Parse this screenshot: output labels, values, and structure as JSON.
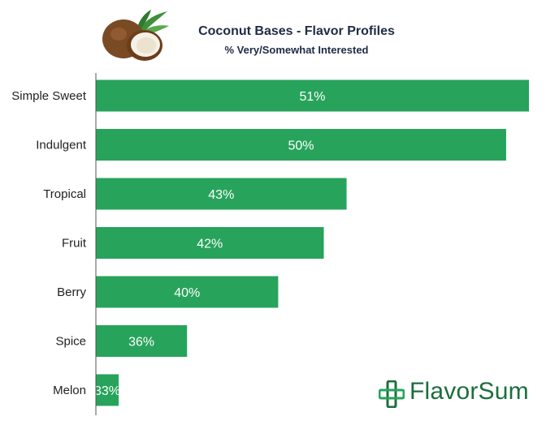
{
  "header": {
    "title": "Coconut Bases - Flavor Profiles",
    "subtitle": "% Very/Somewhat Interested"
  },
  "logo": {
    "text": "FlavorSum",
    "icon": "plus-cross-icon"
  },
  "colors": {
    "bar": "#27a35b",
    "bar_label": "#ffffff",
    "axis": "#555555",
    "text": "#222222",
    "title": "#1f2a44",
    "brand": "#1c6e3b"
  },
  "chart_data": {
    "type": "bar",
    "orientation": "horizontal",
    "title": "Coconut Bases - Flavor Profiles",
    "subtitle": "% Very/Somewhat Interested",
    "categories": [
      "Simple Sweet",
      "Indulgent",
      "Tropical",
      "Fruit",
      "Berry",
      "Spice",
      "Melon"
    ],
    "values": [
      51,
      50,
      43,
      42,
      40,
      36,
      33
    ],
    "value_labels": [
      "51%",
      "50%",
      "43%",
      "42%",
      "40%",
      "36%",
      "33%"
    ],
    "xlim": [
      32,
      52
    ],
    "grid": false,
    "legend": "none"
  }
}
